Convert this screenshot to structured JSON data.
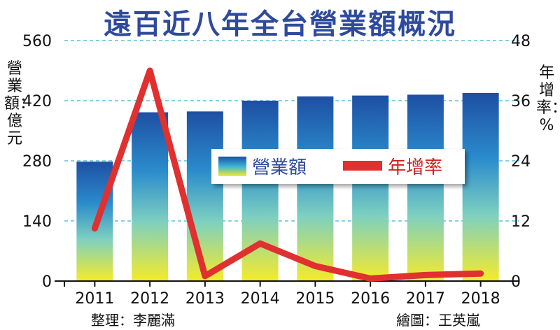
{
  "chart_data": {
    "type": "bar",
    "title": "遠百近八年全台營業額概況",
    "categories": [
      "2011",
      "2012",
      "2013",
      "2014",
      "2015",
      "2016",
      "2017",
      "2018"
    ],
    "series": [
      {
        "name": "營業額",
        "type": "bar",
        "axis": "left",
        "values": [
          278,
          393,
          395,
          420,
          430,
          432,
          434,
          438
        ]
      },
      {
        "name": "年增率",
        "type": "line",
        "axis": "right",
        "values": [
          10.5,
          42,
          1,
          7.5,
          3,
          0.5,
          1.2,
          1.5
        ]
      }
    ],
    "ylabel_left": "營業額：億元",
    "ylabel_right": "年增率：%",
    "ylim_left": [
      0,
      560
    ],
    "yticks_left": [
      "0",
      "140",
      "280",
      "420",
      "560"
    ],
    "ylim_right": [
      0,
      48
    ],
    "yticks_right": [
      "0",
      "12",
      "24",
      "36",
      "48"
    ],
    "grid": true,
    "legend_position": "center-right",
    "colors": {
      "title": "#2e4a9c",
      "line": "#e03030",
      "bar_top": "#1e4fa3",
      "bar_mid": "#3ab5d8",
      "bar_bottom": "#f5eb2a",
      "grid": "#5bc0de"
    }
  },
  "credits": {
    "left": "整理：李麗滿",
    "right": "繪圖：王英嵐"
  }
}
